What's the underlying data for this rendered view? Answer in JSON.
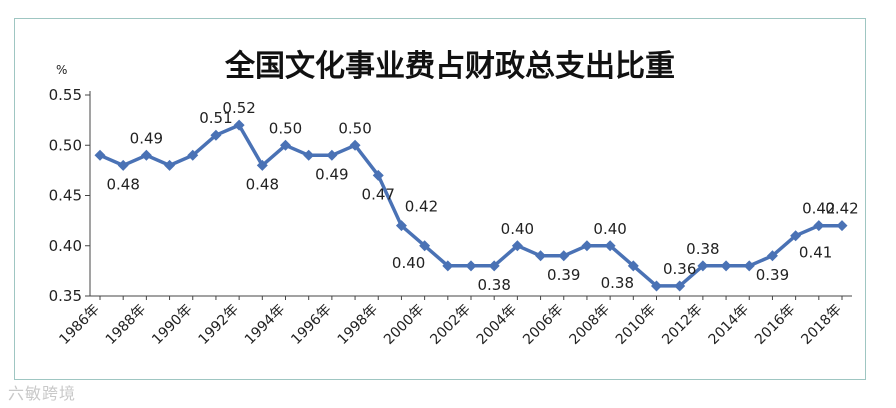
{
  "watermark": "六敏跨境",
  "chart_data": {
    "type": "line",
    "title": "全国文化事业费占财政总支出比重",
    "ylabel": "%",
    "xlabel": "",
    "ylim": [
      0.35,
      0.55
    ],
    "yticks": [
      "0.35",
      "0.40",
      "0.45",
      "0.50",
      "0.55"
    ],
    "grid": false,
    "legend": "none",
    "line_color": "#4a72b5",
    "x": [
      "1986年",
      "1987年",
      "1988年",
      "1989年",
      "1990年",
      "1991年",
      "1992年",
      "1993年",
      "1994年",
      "1995年",
      "1996年",
      "1997年",
      "1998年",
      "1999年",
      "2000年",
      "2001年",
      "2002年",
      "2003年",
      "2004年",
      "2005年",
      "2006年",
      "2007年",
      "2008年",
      "2009年",
      "2010年",
      "2011年",
      "2012年",
      "2013年",
      "2014年",
      "2015年",
      "2016年",
      "2017年",
      "2018年"
    ],
    "xtick_labels": [
      "1986年",
      "1988年",
      "1990年",
      "1992年",
      "1994年",
      "1996年",
      "1998年",
      "2000年",
      "2002年",
      "2004年",
      "2006年",
      "2008年",
      "2010年",
      "2012年",
      "2014年",
      "2016年",
      "2018年"
    ],
    "values": [
      0.49,
      0.48,
      0.49,
      0.48,
      0.49,
      0.51,
      0.52,
      0.48,
      0.5,
      0.49,
      0.49,
      0.5,
      0.47,
      0.42,
      0.4,
      0.38,
      0.38,
      0.38,
      0.4,
      0.39,
      0.39,
      0.4,
      0.4,
      0.38,
      0.36,
      0.36,
      0.38,
      0.38,
      0.38,
      0.39,
      0.41,
      0.42,
      0.42
    ],
    "data_labels": [
      {
        "index": 1,
        "text": "0.48",
        "pos": "below"
      },
      {
        "index": 2,
        "text": "0.49",
        "pos": "above"
      },
      {
        "index": 5,
        "text": "0.51",
        "pos": "above"
      },
      {
        "index": 6,
        "text": "0.52",
        "pos": "above"
      },
      {
        "index": 7,
        "text": "0.48",
        "pos": "below"
      },
      {
        "index": 8,
        "text": "0.50",
        "pos": "above"
      },
      {
        "index": 10,
        "text": "0.49",
        "pos": "below"
      },
      {
        "index": 11,
        "text": "0.50",
        "pos": "above"
      },
      {
        "index": 12,
        "text": "0.47",
        "pos": "below"
      },
      {
        "index": 13,
        "text": "0.42",
        "pos": "above-right"
      },
      {
        "index": 14,
        "text": "0.40",
        "pos": "below-left"
      },
      {
        "index": 17,
        "text": "0.38",
        "pos": "below"
      },
      {
        "index": 18,
        "text": "0.40",
        "pos": "above"
      },
      {
        "index": 20,
        "text": "0.39",
        "pos": "below"
      },
      {
        "index": 22,
        "text": "0.40",
        "pos": "above"
      },
      {
        "index": 23,
        "text": "0.38",
        "pos": "below-left"
      },
      {
        "index": 25,
        "text": "0.36",
        "pos": "above"
      },
      {
        "index": 26,
        "text": "0.38",
        "pos": "above"
      },
      {
        "index": 29,
        "text": "0.39",
        "pos": "below"
      },
      {
        "index": 30,
        "text": "0.41",
        "pos": "below-right"
      },
      {
        "index": 31,
        "text": "0.42",
        "pos": "above"
      },
      {
        "index": 32,
        "text": "0.42",
        "pos": "above"
      }
    ]
  }
}
